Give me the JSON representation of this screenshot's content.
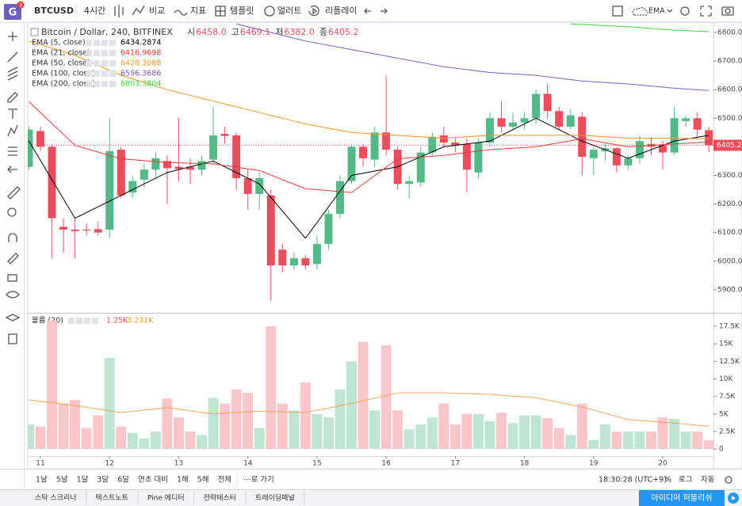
{
  "logo": {
    "letter": "G",
    "badge": "3"
  },
  "toolbar": {
    "symbol": "BTCUSD",
    "interval": "4시간",
    "compare": "비교",
    "indicators": "지표",
    "templates": "템플릿",
    "alerts": "얼러트",
    "replay": "리플레이",
    "study": "EMA"
  },
  "legend": {
    "title": "Bitcoin / Dollar, 240, BITFINEX",
    "ohlc": [
      {
        "label": "시",
        "value": "6458.0"
      },
      {
        "label": "고",
        "value": "6469.1"
      },
      {
        "label": "저",
        "value": "6382.0"
      },
      {
        "label": "종",
        "value": "6405.2"
      }
    ],
    "volume_name": "볼륨 (20)",
    "volume_value": "1.25K",
    "volume_ma_value": "3.231K"
  },
  "chart_data": {
    "type": "candlestick",
    "up_color": "#53b987",
    "down_color": "#eb4d5c",
    "open": [
      6330,
      6455,
      6400,
      6120,
      6110,
      6110,
      6112,
      6110,
      6390,
      6240,
      6285,
      6320,
      6350,
      6330,
      6330,
      6320,
      6355,
      6445,
      6440,
      6290,
      6235,
      6230,
      6040,
      5985,
      6010,
      5990,
      6060,
      6165,
      6280,
      6400,
      6355,
      6450,
      6390,
      6270,
      6275,
      6380,
      6440,
      6415,
      6410,
      6310,
      6415,
      6500,
      6470,
      6485,
      6500,
      6585,
      6525,
      6470,
      6505,
      6360,
      6385,
      6395,
      6335,
      6360,
      6410,
      6405,
      6380,
      6490,
      6500,
      6458
    ],
    "high": [
      6470,
      6470,
      6410,
      6150,
      6150,
      6130,
      6140,
      6500,
      6400,
      6300,
      6340,
      6380,
      6370,
      6500,
      6360,
      6370,
      6540,
      6470,
      6450,
      6320,
      6310,
      6250,
      6060,
      6030,
      6020,
      6090,
      6180,
      6300,
      6410,
      6410,
      6470,
      6650,
      6400,
      6300,
      6400,
      6450,
      6470,
      6430,
      6430,
      6430,
      6520,
      6560,
      6520,
      6520,
      6600,
      6620,
      6540,
      6530,
      6520,
      6400,
      6410,
      6400,
      6370,
      6440,
      6430,
      6420,
      6540,
      6510,
      6520,
      6469.1
    ],
    "low": [
      6320,
      6385,
      6010,
      6030,
      6010,
      6090,
      6090,
      6080,
      6220,
      6220,
      6260,
      6290,
      6200,
      6280,
      6270,
      6300,
      6340,
      6410,
      6250,
      6180,
      6180,
      5860,
      5960,
      5970,
      5970,
      5970,
      6040,
      6150,
      6270,
      6330,
      6330,
      6370,
      6250,
      6220,
      6260,
      6370,
      6400,
      6380,
      6240,
      6290,
      6400,
      6450,
      6460,
      6460,
      6480,
      6500,
      6460,
      6460,
      6300,
      6300,
      6350,
      6310,
      6320,
      6340,
      6370,
      6320,
      6370,
      6470,
      6430,
      6382
    ],
    "close": [
      6460,
      6400,
      6150,
      6110,
      6105,
      6108,
      6100,
      6385,
      6230,
      6280,
      6320,
      6360,
      6325,
      6322,
      6320,
      6350,
      6440,
      6438,
      6290,
      6235,
      6290,
      5985,
      5985,
      6010,
      5985,
      6060,
      6165,
      6280,
      6400,
      6360,
      6450,
      6390,
      6270,
      6280,
      6380,
      6435,
      6415,
      6405,
      6320,
      6415,
      6500,
      6470,
      6485,
      6500,
      6585,
      6525,
      6470,
      6510,
      6365,
      6390,
      6395,
      6335,
      6360,
      6420,
      6400,
      6380,
      6500,
      6500,
      6460,
      6405.2
    ],
    "xlim": [
      -0.1,
      59.4
    ],
    "xticks": [
      {
        "value": 1,
        "label": "11"
      },
      {
        "value": 7,
        "label": "12"
      },
      {
        "value": 13,
        "label": "13"
      },
      {
        "value": 19,
        "label": "14"
      },
      {
        "value": 25,
        "label": "15"
      },
      {
        "value": 31,
        "label": "16"
      },
      {
        "value": 37,
        "label": "17"
      },
      {
        "value": 43,
        "label": "18"
      },
      {
        "value": 49,
        "label": "19"
      },
      {
        "value": 55,
        "label": "20"
      }
    ],
    "ylim": [
      5822,
      6836
    ],
    "yticks": [
      {
        "value": 5900,
        "label": "5900.0"
      },
      {
        "value": 6000,
        "label": "6000.0"
      },
      {
        "value": 6100,
        "label": "6100.0"
      },
      {
        "value": 6200,
        "label": "6200.0"
      },
      {
        "value": 6300,
        "label": "6300.0"
      },
      {
        "value": 6400,
        "label": "6400.0"
      },
      {
        "value": 6500,
        "label": "6500.0"
      },
      {
        "value": 6600,
        "label": "6600.0"
      },
      {
        "value": 6700,
        "label": "6700.0"
      },
      {
        "value": 6800,
        "label": "6800.0"
      }
    ],
    "ema": [
      {
        "name": "EMA (5, close)",
        "color": "#000000",
        "legend_value": 6434.2874,
        "x": [
          0,
          4,
          8,
          12,
          16,
          20,
          24,
          28,
          32,
          36,
          40,
          44,
          48,
          52,
          56,
          59
        ],
        "values": [
          6420,
          6150,
          6230,
          6310,
          6350,
          6270,
          6080,
          6300,
          6330,
          6400,
          6420,
          6500,
          6420,
          6360,
          6420,
          6440
        ]
      },
      {
        "name": "EMA (21, close)",
        "color": "#e53935",
        "legend_value": 6416.9698,
        "x": [
          0,
          4,
          8,
          12,
          16,
          20,
          24,
          28,
          32,
          36,
          40,
          44,
          48,
          52,
          56,
          59
        ],
        "values": [
          6558,
          6405,
          6358,
          6345,
          6340,
          6317,
          6253,
          6240,
          6358,
          6370,
          6390,
          6400,
          6428,
          6400,
          6410,
          6417
        ]
      },
      {
        "name": "EMA (50, close)",
        "color": "#f7931e",
        "legend_value": 6428.3088,
        "x": [
          0,
          4,
          8,
          12,
          16,
          20,
          24,
          28,
          32,
          36,
          40,
          44,
          48,
          52,
          56,
          59
        ],
        "values": [
          6770,
          6720,
          6650,
          6600,
          6560,
          6520,
          6480,
          6450,
          6440,
          6430,
          6440,
          6440,
          6440,
          6430,
          6430,
          6428
        ]
      },
      {
        "name": "EMA (100, close)",
        "color": "#7e57c2",
        "legend_value": 6596.3686,
        "x": [
          18,
          20,
          24,
          28,
          32,
          36,
          40,
          44,
          48,
          52,
          56,
          59
        ],
        "values": [
          6830,
          6810,
          6770,
          6740,
          6710,
          6680,
          6660,
          6650,
          6630,
          6620,
          6605,
          6597
        ]
      },
      {
        "name": "EMA (200, close)",
        "color": "#3fd13a",
        "legend_value": 6803.3804,
        "x": [
          47,
          52,
          56,
          59
        ],
        "values": [
          6830,
          6820,
          6808,
          6803
        ]
      }
    ],
    "volume": {
      "up_color": "#bfe5d2",
      "down_color": "#f8c6cb",
      "ma_color": "#f7a35c",
      "values": [
        3500,
        3200,
        18300,
        6500,
        7000,
        3000,
        4800,
        13000,
        3200,
        2300,
        1500,
        2500,
        7200,
        4500,
        2500,
        2000,
        7300,
        6500,
        8500,
        8000,
        3000,
        17500,
        6500,
        5500,
        9500,
        5000,
        4500,
        8500,
        12500,
        15300,
        5500,
        14800,
        5500,
        2800,
        3500,
        4500,
        6500,
        3500,
        5000,
        5000,
        4000,
        5200,
        3700,
        4800,
        4800,
        4400,
        3000,
        2000,
        6500,
        1300,
        3500,
        2500,
        2500,
        2500,
        2500,
        4500,
        4300,
        2500,
        2500,
        1250
      ],
      "ma_x": [
        0,
        4,
        8,
        12,
        16,
        20,
        24,
        28,
        32,
        36,
        40,
        44,
        48,
        52,
        56,
        59
      ],
      "ma_values": [
        7000,
        6200,
        5200,
        5900,
        5000,
        5400,
        5200,
        6500,
        8000,
        8000,
        7800,
        7300,
        6000,
        4200,
        3700,
        3231
      ],
      "ylim": [
        -900,
        19200
      ],
      "yticks": [
        0,
        {
          "value": 2500,
          "label": "2.5K"
        },
        {
          "value": 5000,
          "label": "5K"
        },
        {
          "value": 7500,
          "label": "7.5K"
        },
        {
          "value": 10000,
          "label": "10K"
        },
        {
          "value": 12500,
          "label": "12.5K"
        },
        {
          "value": 15000,
          "label": "15K"
        },
        {
          "value": 17500,
          "label": "17.5K"
        }
      ]
    }
  },
  "bottom_bar": {
    "ranges": [
      "1날",
      "5날",
      "1달",
      "3달",
      "6달",
      "연초 대비",
      "1해",
      "5해",
      "전체"
    ],
    "goto": "⋯로 가기",
    "clock": "18:30:28 (UTC+9)",
    "percent": "%",
    "log": "로그",
    "auto": "자동"
  },
  "tabs": {
    "items": [
      "스탁 스크리너",
      "텍스트노트",
      "Pine 에디터",
      "전략테스터",
      "트레이딩패널"
    ],
    "publish": "아이디어 퍼블리쉬"
  }
}
